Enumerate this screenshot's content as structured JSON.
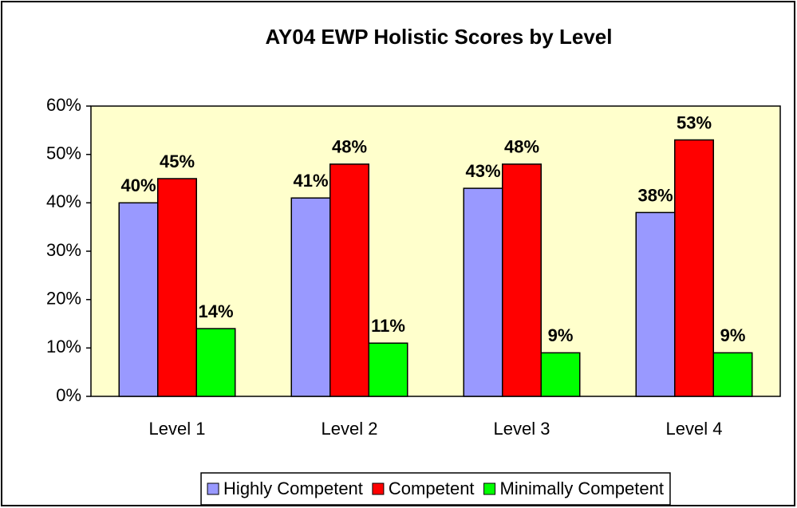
{
  "chart_data": {
    "type": "bar",
    "title": "AY04 EWP Holistic Scores by Level",
    "categories": [
      "Level 1",
      "Level 2",
      "Level 3",
      "Level 4"
    ],
    "series": [
      {
        "name": "Highly Competent",
        "color": "#9999ff",
        "values": [
          40,
          41,
          43,
          38
        ],
        "value_labels": [
          "40%",
          "41%",
          "43%",
          "38%"
        ]
      },
      {
        "name": "Competent",
        "color": "#ff0000",
        "values": [
          45,
          48,
          48,
          53
        ],
        "value_labels": [
          "45%",
          "48%",
          "48%",
          "53%"
        ]
      },
      {
        "name": "Minimally Competent",
        "color": "#00ff00",
        "values": [
          14,
          11,
          9,
          9
        ],
        "value_labels": [
          "14%",
          "11%",
          "9%",
          "9%"
        ]
      }
    ],
    "ylim": [
      0,
      60
    ],
    "yticks": [
      {
        "value": 0,
        "label": "0%"
      },
      {
        "value": 10,
        "label": "10%"
      },
      {
        "value": 20,
        "label": "20%"
      },
      {
        "value": 30,
        "label": "30%"
      },
      {
        "value": 40,
        "label": "40%"
      },
      {
        "value": 50,
        "label": "50%"
      },
      {
        "value": 60,
        "label": "60%"
      }
    ],
    "grid": false,
    "plot_background": "#ffffcc",
    "legend": "bottom"
  }
}
